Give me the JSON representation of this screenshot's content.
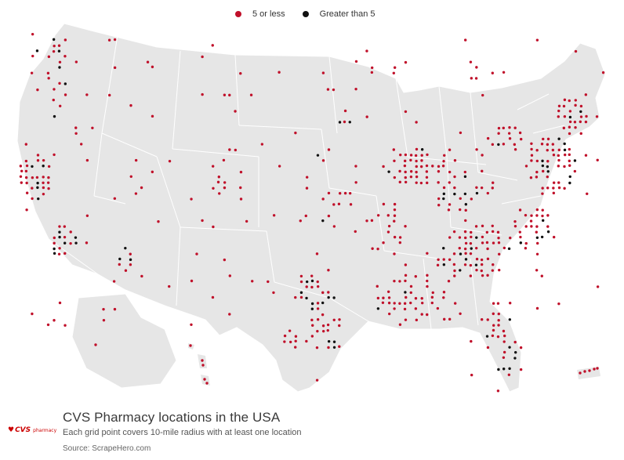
{
  "legend": {
    "items": [
      {
        "label": "5 or less",
        "color": "#c0102a"
      },
      {
        "label": "Greater than 5",
        "color": "#111111"
      }
    ]
  },
  "title": "CVS Pharmacy locations in the USA",
  "subtitle": "Each grid point covers 10-mile radius with at least one location",
  "source": "Source: ScrapeHero.com",
  "logo": {
    "brand": "CVS",
    "sub": "pharmacy"
  },
  "colors": {
    "land": "#e6e6e6",
    "borders": "#ffffff",
    "low": "#c0102a",
    "high": "#111111"
  }
}
